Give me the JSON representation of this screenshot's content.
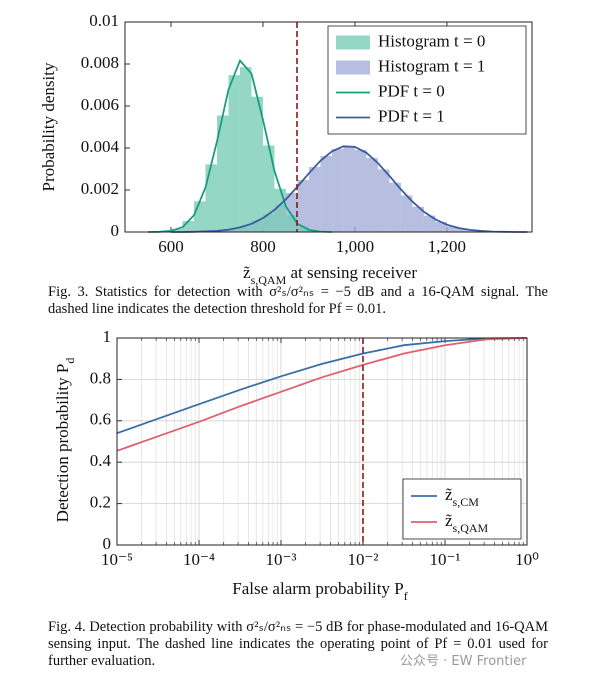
{
  "chart_data": [
    {
      "type": "histogram",
      "ylabel": "Probability density",
      "xlabel": [
        {
          "text": "z̃"
        },
        {
          "text": "s,QAM",
          "sub": true
        },
        {
          "text": " at sensing receiver"
        }
      ],
      "xlim": [
        500,
        1385
      ],
      "ylim": [
        0,
        0.01
      ],
      "xticks": [
        600,
        800,
        {
          "value": 1000,
          "label": "1,000"
        },
        {
          "value": 1200,
          "label": "1,200"
        }
      ],
      "yticks": [
        0,
        0.002,
        0.004,
        0.006,
        0.008,
        0.01
      ],
      "bins": [
        550,
        575,
        600,
        625,
        650,
        675,
        700,
        725,
        750,
        775,
        800,
        825,
        850,
        875,
        900,
        925,
        950,
        975,
        1000,
        1025,
        1050,
        1075,
        1100,
        1125,
        1150,
        1175,
        1200,
        1225,
        1250,
        1275,
        1300,
        1325,
        1350,
        1375
      ],
      "series": [
        {
          "name": "Histogram t = 1",
          "color": "#a4afd7",
          "values": [
            0,
            0,
            0,
            1e-05,
            2e-05,
            4e-05,
            8e-05,
            0.00017,
            0.0003,
            0.00053,
            0.00086,
            0.0013,
            0.00186,
            0.00248,
            0.0031,
            0.00362,
            0.00396,
            0.00407,
            0.00391,
            0.00353,
            0.00298,
            0.00235,
            0.00174,
            0.0012,
            0.00078,
            0.00048,
            0.00027,
            0.00015,
            7e-05,
            3e-05,
            1e-05,
            1e-05,
            0
          ]
        },
        {
          "name": "Histogram t = 0",
          "color": "#7acdb7",
          "values": [
            0,
            3e-05,
            0.00014,
            0.00052,
            0.00146,
            0.00322,
            0.00555,
            0.00747,
            0.00785,
            0.00644,
            0.00412,
            0.00206,
            0.0008,
            0.00025,
            6e-05,
            1e-05,
            0,
            0,
            0,
            0,
            0,
            0,
            0,
            0,
            0,
            0,
            0,
            0,
            0,
            0,
            0,
            0,
            0
          ]
        }
      ],
      "lines": [
        {
          "name": "PDF t = 0",
          "color": "#1a9c82",
          "x": [
            550,
            575,
            600,
            625,
            650,
            675,
            700,
            725,
            750,
            775,
            800,
            825,
            850,
            875,
            900,
            925,
            950
          ],
          "values": [
            0,
            1e-05,
            5e-05,
            0.00023,
            0.0008,
            0.00212,
            0.00432,
            0.00678,
            0.00816,
            0.00754,
            0.00534,
            0.0029,
            0.00121,
            0.00039,
            0.0001,
            2e-05,
            0
          ]
        },
        {
          "name": "PDF t = 1",
          "color": "#3d5b9e",
          "x": [
            600,
            625,
            650,
            675,
            700,
            725,
            750,
            775,
            800,
            825,
            850,
            875,
            900,
            925,
            950,
            975,
            1000,
            1025,
            1050,
            1075,
            1100,
            1125,
            1150,
            1175,
            1200,
            1225,
            1250,
            1275,
            1300,
            1325,
            1350,
            1375
          ],
          "values": [
            0,
            0,
            1e-05,
            3e-05,
            5e-05,
            0.00011,
            0.00022,
            0.00039,
            0.00066,
            0.00105,
            0.00156,
            0.00216,
            0.0028,
            0.00339,
            0.00384,
            0.00408,
            0.00405,
            0.00377,
            0.00328,
            0.00267,
            0.00203,
            0.00145,
            0.00096,
            0.0006,
            0.00035,
            0.00019,
            0.0001,
            5e-05,
            2e-05,
            1e-05,
            0,
            0
          ]
        }
      ],
      "threshold": 874,
      "threshold_color": "#8b1a1a",
      "legend": "upper right",
      "grid": false
    },
    {
      "type": "line",
      "ylabel": [
        {
          "text": "Detection probability "
        },
        {
          "text": "P"
        },
        {
          "text": "d",
          "sub": true
        }
      ],
      "xlabel": [
        {
          "text": "False alarm probability "
        },
        {
          "text": "P"
        },
        {
          "text": "f",
          "sub": true
        }
      ],
      "xscale": "log",
      "xlim": [
        1e-05,
        1
      ],
      "ylim": [
        0,
        1
      ],
      "xticks": [
        {
          "value": 1e-05,
          "label": "10⁻⁵"
        },
        {
          "value": 0.0001,
          "label": "10⁻⁴"
        },
        {
          "value": 0.001,
          "label": "10⁻³"
        },
        {
          "value": 0.01,
          "label": "10⁻²"
        },
        {
          "value": 0.1,
          "label": "10⁻¹"
        },
        {
          "value": 1,
          "label": "10⁰"
        }
      ],
      "yticks": [
        0,
        0.2,
        0.4,
        0.6,
        0.8,
        1
      ],
      "x": [
        1e-05,
        3.16e-05,
        0.0001,
        0.000316,
        0.001,
        0.00316,
        0.01,
        0.0316,
        0.1,
        0.316,
        1
      ],
      "series": [
        {
          "name": [
            {
              "text": "z̃"
            },
            {
              "text": "s,CM",
              "sub": true
            }
          ],
          "color": "#3a6ea5",
          "values": [
            0.54,
            0.61,
            0.68,
            0.75,
            0.815,
            0.875,
            0.925,
            0.965,
            0.985,
            0.998,
            1
          ]
        },
        {
          "name": [
            {
              "text": "z̃"
            },
            {
              "text": "s,QAM",
              "sub": true
            }
          ],
          "color": "#e0606e",
          "values": [
            0.455,
            0.525,
            0.595,
            0.67,
            0.74,
            0.81,
            0.87,
            0.925,
            0.965,
            0.993,
            1
          ]
        }
      ],
      "threshold": 0.01,
      "threshold_color": "#8b1a1a",
      "legend": "lower right",
      "grid": true
    }
  ],
  "captions": [
    "Fig. 3. Statistics for detection with σ²ₛ/σ²ₙₛ = −5 dB and a 16-QAM signal. The dashed line indicates the detection threshold for Pf = 0.01.",
    "Fig. 4. Detection probability with σ²ₛ/σ²ₙₛ = −5 dB for phase-modulated and 16-QAM sensing input. The dashed line indicates the operating point of Pf = 0.01 used for further evaluation."
  ],
  "watermark": "公众号 · EW Frontier"
}
